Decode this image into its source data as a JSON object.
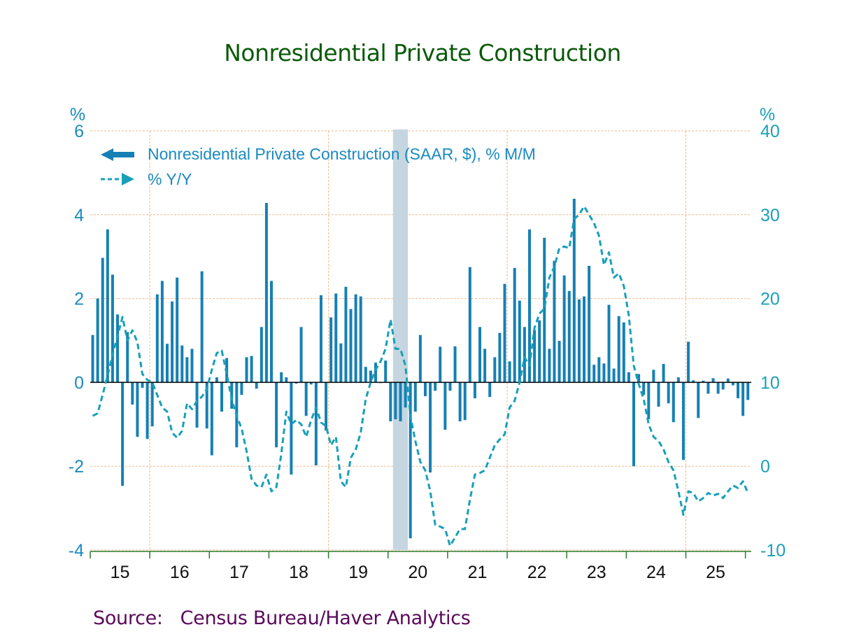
{
  "colors": {
    "bars": "#1680b4",
    "line": "#17a0b8",
    "grid": "#f2b98a",
    "axis": "#2a7a2a",
    "recession": "#c5d6e0",
    "title": "#0a5a0a",
    "source": "#5a0a5a"
  },
  "chart_data": {
    "type": "bar",
    "title": "Nonresidential Private Construction",
    "source_label": "Source:   Census Bureau/Haver Analytics",
    "left_axis": {
      "unit": "%",
      "ylim": [
        -4,
        6
      ],
      "ticks": [
        "-4",
        "-2",
        "0",
        "2",
        "4",
        "6"
      ],
      "tick_values": [
        -4,
        -2,
        0,
        2,
        4,
        6
      ]
    },
    "right_axis": {
      "unit": "%",
      "ylim": [
        -10,
        40
      ],
      "ticks": [
        "-10",
        "0",
        "10",
        "20",
        "30",
        "40"
      ],
      "tick_values": [
        -10,
        0,
        10,
        20,
        30,
        40
      ]
    },
    "x_tick_labels": [
      "15",
      "16",
      "17",
      "18",
      "19",
      "20",
      "21",
      "22",
      "23",
      "24",
      "25"
    ],
    "grid": true,
    "legend_position": "top-left",
    "recession": {
      "start": "2020-02",
      "end": "2020-04"
    },
    "start_month": "2015-02",
    "series": [
      {
        "name": "Nonresidential Private Construction (SAAR, $), % M/M",
        "type": "bar",
        "axis": "left",
        "values": [
          1.13,
          2.0,
          2.97,
          3.65,
          2.57,
          1.62,
          -2.47,
          1.2,
          -0.53,
          -1.3,
          -0.13,
          -1.35,
          -1.05,
          2.1,
          2.42,
          0.92,
          1.93,
          2.5,
          0.88,
          0.6,
          0.8,
          -1.08,
          2.65,
          -1.1,
          -1.74,
          0.12,
          -0.7,
          0.58,
          -0.63,
          -1.55,
          -0.3,
          0.6,
          0.63,
          -0.15,
          1.32,
          4.28,
          2.42,
          -1.55,
          0.24,
          0.12,
          -2.2,
          -0.03,
          1.32,
          -0.8,
          -0.05,
          -1.98,
          2.08,
          -1.15,
          1.55,
          2.12,
          0.93,
          2.28,
          1.75,
          2.1,
          2.05,
          0.37,
          0.28,
          0.47,
          0.0,
          0.52,
          -0.93,
          -0.88,
          -0.93,
          -0.6,
          -3.72,
          -0.7,
          1.13,
          -0.33,
          -2.15,
          -0.2,
          0.85,
          -1.13,
          -0.2,
          0.86,
          -0.93,
          -0.9,
          2.75,
          -0.38,
          1.32,
          0.8,
          -0.35,
          0.6,
          1.18,
          2.35,
          0.5,
          2.73,
          1.95,
          1.32,
          3.65,
          1.25,
          1.48,
          3.45,
          0.8,
          2.9,
          0.99,
          2.55,
          2.18,
          4.38,
          1.98,
          2.05,
          2.78,
          0.42,
          0.6,
          0.45,
          1.85,
          0.33,
          1.58,
          1.43,
          0.24,
          -2.0,
          0.2,
          -0.3,
          -0.88,
          0.3,
          -0.58,
          0.44,
          -0.5,
          -0.95,
          0.12,
          -1.85,
          0.97,
          0.05,
          -0.85,
          0.04,
          -0.27,
          0.1,
          -0.27,
          -0.17,
          0.09,
          -0.07,
          -0.38,
          -0.8,
          -0.42
        ]
      },
      {
        "name": "% Y/Y",
        "type": "line",
        "axis": "right",
        "style": "dashed",
        "values": [
          6.0,
          6.3,
          8.5,
          10.8,
          13.3,
          15.5,
          17.8,
          15.0,
          16.2,
          14.8,
          11.0,
          10.3,
          10.0,
          8.5,
          7.0,
          6.5,
          4.0,
          3.4,
          4.2,
          7.5,
          6.8,
          7.8,
          8.3,
          9.2,
          11.5,
          13.5,
          13.8,
          11.0,
          8.0,
          6.0,
          4.5,
          1.8,
          -1.5,
          -2.3,
          -2.5,
          -1.0,
          -3.0,
          -2.5,
          1.5,
          6.5,
          5.0,
          5.5,
          5.0,
          3.5,
          5.5,
          7.0,
          5.2,
          4.8,
          2.5,
          3.5,
          -1.8,
          -2.5,
          1.0,
          2.0,
          4.0,
          8.0,
          10.0,
          11.5,
          12.5,
          14.0,
          17.5,
          14.0,
          14.0,
          12.0,
          6.0,
          3.0,
          0.5,
          -0.5,
          -3.0,
          -7.0,
          -7.2,
          -7.5,
          -9.5,
          -8.5,
          -7.5,
          -7.5,
          -4.0,
          -1.0,
          -0.8,
          -0.5,
          1.0,
          2.5,
          3.2,
          3.8,
          7.0,
          7.8,
          10.0,
          13.0,
          12.0,
          16.5,
          18.2,
          18.8,
          22.5,
          23.8,
          26.0,
          26.2,
          26.0,
          29.5,
          30.0,
          31.0,
          30.0,
          29.0,
          27.5,
          24.0,
          25.5,
          22.5,
          23.0,
          21.5,
          18.0,
          12.0,
          9.8,
          8.0,
          5.0,
          3.5,
          3.0,
          2.0,
          0.5,
          -0.5,
          -3.0,
          -5.8,
          -3.0,
          -3.2,
          -4.2,
          -3.8,
          -3.2,
          -3.5,
          -3.3,
          -3.8,
          -3.0,
          -2.3,
          -2.6,
          -1.8,
          -3.2
        ]
      }
    ]
  }
}
